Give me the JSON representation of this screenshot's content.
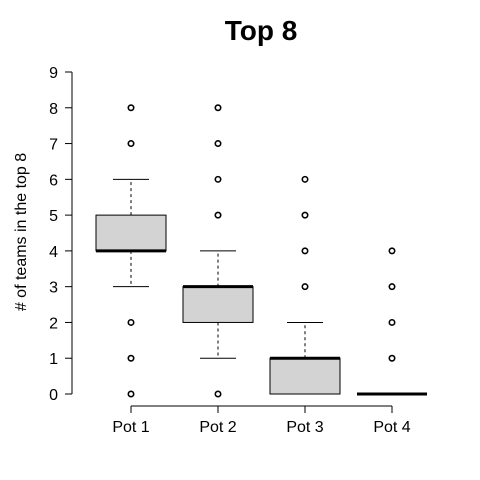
{
  "chart_data": {
    "type": "boxplot",
    "title": "Top 8",
    "xlabel": "",
    "ylabel": "# of teams in the top 8",
    "ylim": [
      0,
      9
    ],
    "yticks": [
      0,
      1,
      2,
      3,
      4,
      5,
      6,
      7,
      8,
      9
    ],
    "categories": [
      "Pot 1",
      "Pot 2",
      "Pot 3",
      "Pot 4"
    ],
    "boxes": [
      {
        "category": "Pot 1",
        "whisker_low": 3,
        "q1": 4,
        "median": 4,
        "q3": 5,
        "whisker_high": 6,
        "outliers": [
          0,
          1,
          2,
          7,
          8
        ]
      },
      {
        "category": "Pot 2",
        "whisker_low": 1,
        "q1": 2,
        "median": 3,
        "q3": 3,
        "whisker_high": 4,
        "outliers": [
          0,
          5,
          6,
          7,
          8
        ]
      },
      {
        "category": "Pot 3",
        "whisker_low": 0,
        "q1": 0,
        "median": 1,
        "q3": 1,
        "whisker_high": 2,
        "outliers": [
          3,
          4,
          5,
          6
        ]
      },
      {
        "category": "Pot 4",
        "whisker_low": 0,
        "q1": 0,
        "median": 0,
        "q3": 0,
        "whisker_high": 0,
        "outliers": [
          1,
          2,
          3,
          4
        ]
      }
    ],
    "box_fill": "#d3d3d3",
    "grid": false,
    "legend": "none"
  }
}
